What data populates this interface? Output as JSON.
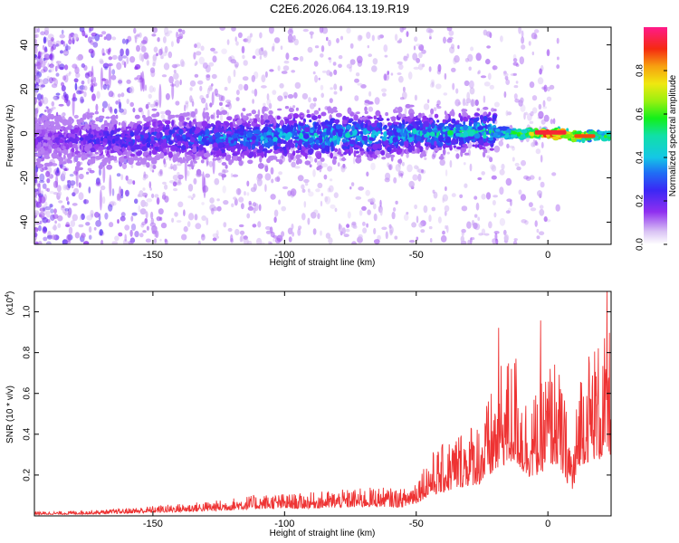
{
  "title": "C2E6.2026.064.13.19.R19",
  "chart_data": [
    {
      "type": "heatmap",
      "xlabel": "Height of straight line (km)",
      "ylabel": "Frequency (Hz)",
      "xlim": [
        -195,
        24
      ],
      "ylim": [
        -50,
        48
      ],
      "xticks": [
        -150,
        -100,
        -50,
        0
      ],
      "yticks": [
        -40,
        -20,
        0,
        20,
        40
      ],
      "colorbar": {
        "label": "Normalized spectral amplitude",
        "range": [
          0,
          1
        ],
        "ticks": [
          0.0,
          0.2,
          0.4,
          0.6,
          0.8
        ]
      },
      "band": [
        {
          "x": -190,
          "y": -3,
          "amp": 0.18,
          "spread": 6
        },
        {
          "x": -180,
          "y": -3,
          "amp": 0.22,
          "spread": 6
        },
        {
          "x": -170,
          "y": -3,
          "amp": 0.25,
          "spread": 6
        },
        {
          "x": -160,
          "y": -3,
          "amp": 0.28,
          "spread": 6
        },
        {
          "x": -150,
          "y": -2,
          "amp": 0.3,
          "spread": 6
        },
        {
          "x": -140,
          "y": -2,
          "amp": 0.32,
          "spread": 6
        },
        {
          "x": -130,
          "y": -2,
          "amp": 0.34,
          "spread": 6
        },
        {
          "x": -120,
          "y": -2,
          "amp": 0.36,
          "spread": 6
        },
        {
          "x": -110,
          "y": -2,
          "amp": 0.38,
          "spread": 6
        },
        {
          "x": -100,
          "y": -1,
          "amp": 0.42,
          "spread": 6
        },
        {
          "x": -90,
          "y": -1,
          "amp": 0.45,
          "spread": 6
        },
        {
          "x": -80,
          "y": -1,
          "amp": 0.45,
          "spread": 6
        },
        {
          "x": -70,
          "y": -1,
          "amp": 0.42,
          "spread": 6
        },
        {
          "x": -60,
          "y": -1,
          "amp": 0.42,
          "spread": 6
        },
        {
          "x": -50,
          "y": 0,
          "amp": 0.45,
          "spread": 5
        },
        {
          "x": -40,
          "y": 0,
          "amp": 0.48,
          "spread": 5
        },
        {
          "x": -30,
          "y": 1,
          "amp": 0.5,
          "spread": 5
        },
        {
          "x": -20,
          "y": 1,
          "amp": 0.5,
          "spread": 5
        },
        {
          "x": -15,
          "y": 0,
          "amp": 0.55,
          "spread": 3
        },
        {
          "x": -5,
          "y": 0,
          "amp": 0.75,
          "spread": 2
        },
        {
          "x": 0,
          "y": 0,
          "amp": 0.95,
          "spread": 2
        },
        {
          "x": 5,
          "y": 0,
          "amp": 0.9,
          "spread": 2
        },
        {
          "x": 10,
          "y": -1,
          "amp": 0.8,
          "spread": 2
        },
        {
          "x": 15,
          "y": -1,
          "amp": 0.7,
          "spread": 2
        },
        {
          "x": 20,
          "y": -1,
          "amp": 0.6,
          "spread": 2
        }
      ]
    },
    {
      "type": "line",
      "xlabel": "Height of straight line (km)",
      "ylabel": "SNR (10 * v/v)",
      "scale_note": "(x10",
      "scale_exp": "4",
      "scale_close": ")",
      "xlim": [
        -195,
        24
      ],
      "ylim": [
        0,
        1.1
      ],
      "xticks": [
        -150,
        -100,
        -50,
        0
      ],
      "yticks": [
        0.2,
        0.4,
        0.6,
        0.8,
        1.0
      ],
      "series": [
        {
          "color": "#ee3333",
          "x": [
            -195,
            -185,
            -175,
            -165,
            -155,
            -145,
            -135,
            -125,
            -115,
            -105,
            -95,
            -85,
            -75,
            -65,
            -55,
            -50,
            -45,
            -40,
            -35,
            -30,
            -25,
            -22,
            -20,
            -18,
            -15,
            -12,
            -10,
            -8,
            -5,
            -2,
            0,
            3,
            6,
            9,
            10,
            12,
            15,
            18,
            20,
            22,
            24
          ],
          "y": [
            0.02,
            0.02,
            0.025,
            0.03,
            0.04,
            0.05,
            0.06,
            0.07,
            0.09,
            0.1,
            0.1,
            0.11,
            0.12,
            0.13,
            0.12,
            0.18,
            0.28,
            0.32,
            0.38,
            0.42,
            0.45,
            0.55,
            0.6,
            0.7,
            0.72,
            0.75,
            0.62,
            0.55,
            0.55,
            0.62,
            0.7,
            0.72,
            0.55,
            0.35,
            0.35,
            0.7,
            0.75,
            0.8,
            0.78,
            0.82,
            0.86
          ]
        }
      ]
    }
  ]
}
